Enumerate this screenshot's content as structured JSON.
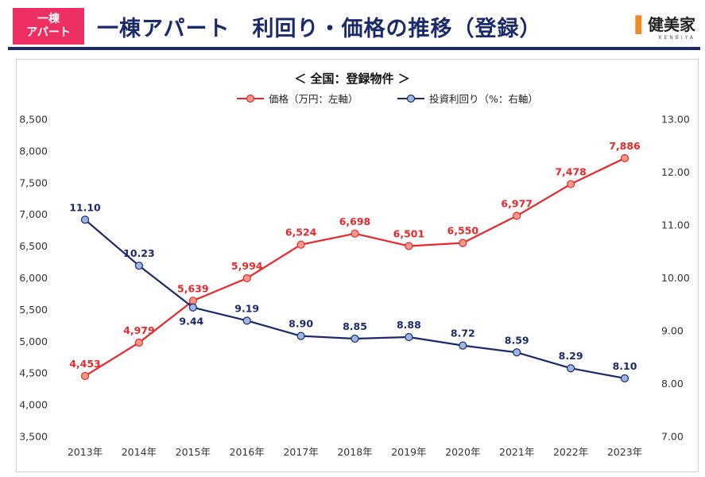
{
  "header": {
    "badge_line1": "一棟",
    "badge_line2": "アパート",
    "title": "一棟アパート　利回り・価格の推移（登録）",
    "logo_text": "健美家",
    "logo_sub": "KENBIYA"
  },
  "chart_data": {
    "type": "line",
    "title": "＜ 全国：登録物件 ＞",
    "categories": [
      "2013年",
      "2014年",
      "2015年",
      "2016年",
      "2017年",
      "2018年",
      "2019年",
      "2020年",
      "2021年",
      "2022年",
      "2023年"
    ],
    "series": [
      {
        "name": "価格（万円：左軸）",
        "axis": "left",
        "color": "#e8282a",
        "values": [
          4453,
          4979,
          5639,
          5994,
          6524,
          6698,
          6501,
          6550,
          6977,
          7478,
          7886
        ],
        "labels": [
          "4,453",
          "4,979",
          "5,639",
          "5,994",
          "6,524",
          "6,698",
          "6,501",
          "6,550",
          "6,977",
          "7,478",
          "7,886"
        ]
      },
      {
        "name": "投資利回り（%：右軸）",
        "axis": "right",
        "color": "#1b2a6b",
        "values": [
          11.1,
          10.23,
          9.44,
          9.19,
          8.9,
          8.85,
          8.88,
          8.72,
          8.59,
          8.29,
          8.1
        ],
        "labels": [
          "11.10",
          "10.23",
          "9.44",
          "9.19",
          "8.90",
          "8.85",
          "8.88",
          "8.72",
          "8.59",
          "8.29",
          "8.10"
        ]
      }
    ],
    "y_left": {
      "range": [
        3500,
        8500
      ],
      "ticks": [
        3500,
        4000,
        4500,
        5000,
        5500,
        6000,
        6500,
        7000,
        7500,
        8000,
        8500
      ],
      "tick_labels": [
        "3,500",
        "4,000",
        "4,500",
        "5,000",
        "5,500",
        "6,000",
        "6,500",
        "7,000",
        "7,500",
        "8,000",
        "8,500"
      ]
    },
    "y_right": {
      "range": [
        7,
        13
      ],
      "ticks": [
        7,
        8,
        9,
        10,
        11,
        12,
        13
      ],
      "tick_labels": [
        "7.00",
        "8.00",
        "9.00",
        "10.00",
        "11.00",
        "12.00",
        "13.00"
      ]
    },
    "legend_position": "top-center",
    "grid": false,
    "marker_fill": {
      "price": "#f49a8a",
      "yield": "#9fb7e0"
    }
  }
}
